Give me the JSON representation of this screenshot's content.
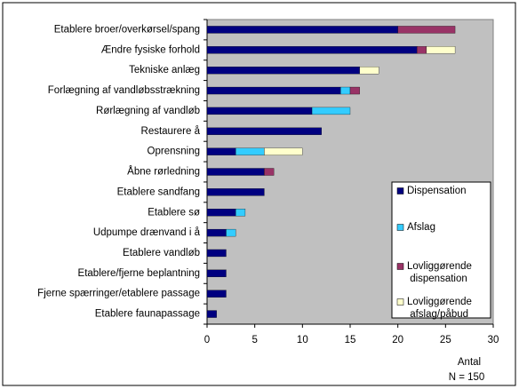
{
  "chart_data": {
    "type": "stacked-barh",
    "categories": [
      "Etablere broer/overkørsel/spang",
      "Ændre fysiske forhold",
      "Tekniske anlæg",
      "Forlægning af vandløbsstrækning",
      "Rørlægning af vandløb",
      "Restaurere å",
      "Oprensning",
      "Åbne rørledning",
      "Etablere sandfang",
      "Etablere sø",
      "Udpumpe drænvand i å",
      "Etablere vandløb",
      "Etablere/fjerne beplantning",
      "Fjerne spærringer/etablere passage",
      "Etablere faunapassage"
    ],
    "series": [
      {
        "name": "Dispensation",
        "color": "#000080",
        "values": [
          20,
          22,
          16,
          14,
          11,
          12,
          3,
          6,
          6,
          3,
          2,
          2,
          2,
          2,
          1
        ]
      },
      {
        "name": "Afslag",
        "color": "#33ccff",
        "values": [
          0,
          0,
          0,
          1,
          4,
          0,
          3,
          0,
          0,
          1,
          1,
          0,
          0,
          0,
          0
        ]
      },
      {
        "name": "Lovliggørende dispensation",
        "color": "#993366",
        "values": [
          6,
          1,
          0,
          1,
          0,
          0,
          0,
          1,
          0,
          0,
          0,
          0,
          0,
          0,
          0
        ]
      },
      {
        "name": "Lovliggørende afslag/påbud",
        "color": "#ffffcc",
        "values": [
          0,
          3,
          2,
          0,
          0,
          0,
          4,
          0,
          0,
          0,
          0,
          0,
          0,
          0,
          0
        ]
      }
    ],
    "xlim": [
      0,
      30
    ],
    "xticks": [
      0,
      5,
      10,
      15,
      20,
      25,
      30
    ],
    "xlabel": "Antal",
    "annotation": "N = 150",
    "grid": false,
    "legend": "lower right"
  }
}
